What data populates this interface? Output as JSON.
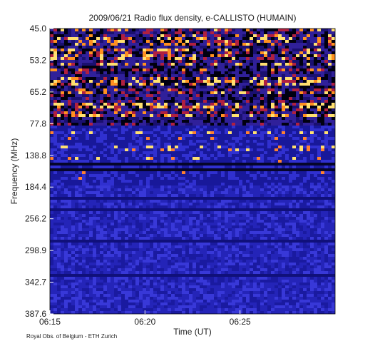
{
  "chart_data": {
    "type": "spectrogram",
    "title": "2009/06/21  Radio flux density, e-CALLISTO (HUMAIN)",
    "x_label": "Time (UT)",
    "y_label": "Frequency (MHz)",
    "xlim": [
      "06:15",
      "06:30"
    ],
    "xticks": [
      "06:15",
      "06:20",
      "06:25"
    ],
    "y_labels": [
      "45.0",
      "53.2",
      "65.2",
      "77.8",
      "138.8",
      "184.4",
      "256.2",
      "298.9",
      "342.7",
      "387.6"
    ],
    "credit": "Royal Obs. of Belgium - ETH Zurich"
  }
}
